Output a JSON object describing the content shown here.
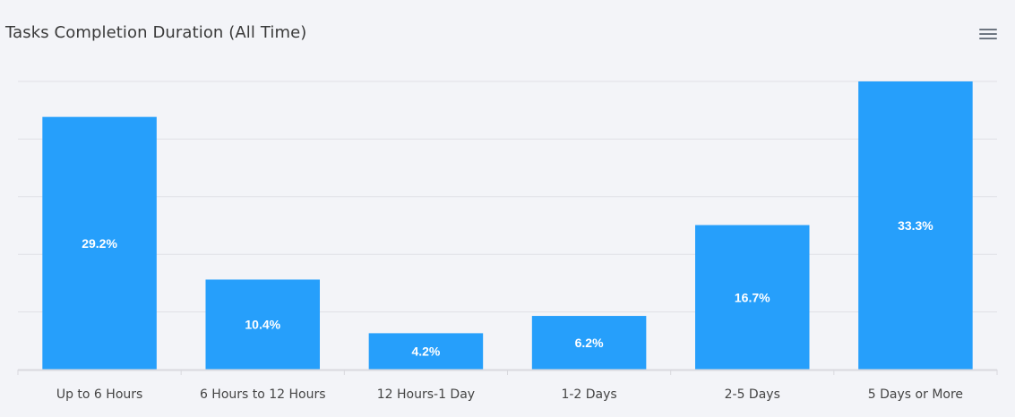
{
  "header": {
    "title": "Tasks Completion Duration (All Time)",
    "menu_icon": "hamburger-menu-icon"
  },
  "colors": {
    "bar": "#269ffb",
    "grid": "#e0e0e6",
    "axis": "#d9d9de",
    "background": "#f3f4f8"
  },
  "chart_data": {
    "type": "bar",
    "title": "Tasks Completion Duration (All Time)",
    "categories": [
      "Up to 6 Hours",
      "6 Hours to 12 Hours",
      "12 Hours-1 Day",
      "1-2 Days",
      "2-5 Days",
      "5 Days or More"
    ],
    "values": [
      29.2,
      10.4,
      4.2,
      6.2,
      16.7,
      33.3
    ],
    "value_labels": [
      "29.2%",
      "10.4%",
      "4.2%",
      "6.2%",
      "16.7%",
      "33.3%"
    ],
    "xlabel": "",
    "ylabel": "",
    "ylim": [
      0,
      33.3
    ],
    "grid": true,
    "gridlines": 5,
    "legend": "none",
    "y_tick_labels_shown": false
  }
}
